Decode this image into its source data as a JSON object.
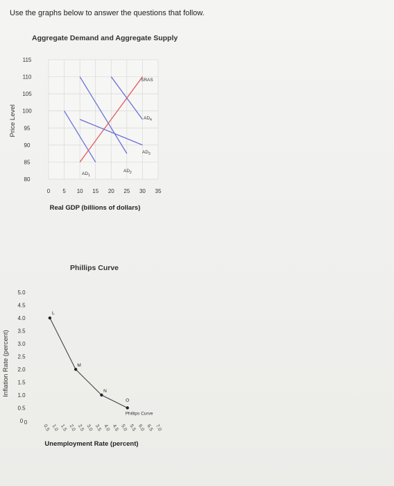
{
  "page": {
    "instructions": "Use the graphs below to answer the questions that follow."
  },
  "colors": {
    "ad_line": "#6b6fd6",
    "sras_line": "#e05a5a",
    "grid": "#d8d8d8",
    "phillips_line": "#444444"
  },
  "chart_data": [
    {
      "type": "line",
      "title": "Aggregate Demand and Aggregate Supply",
      "xlabel": "Real GDP (billions of dollars)",
      "ylabel": "Price Level",
      "xlim": [
        0,
        35
      ],
      "ylim": [
        80,
        115
      ],
      "xticks": [
        "0",
        "5",
        "10",
        "15",
        "20",
        "25",
        "30",
        "35"
      ],
      "yticks": [
        "80",
        "85",
        "90",
        "95",
        "100",
        "105",
        "110",
        "115"
      ],
      "grid": true,
      "series": [
        {
          "name": "AD1",
          "label": "AD",
          "sub": "1",
          "points": [
            [
              5,
              100
            ],
            [
              15,
              85
            ]
          ]
        },
        {
          "name": "AD2",
          "label": "AD",
          "sub": "2",
          "points": [
            [
              10,
              110
            ],
            [
              25,
              87.5
            ]
          ]
        },
        {
          "name": "SRAS",
          "label": "SRAS",
          "sub": "",
          "points": [
            [
              10,
              85
            ],
            [
              30,
              110
            ]
          ]
        },
        {
          "name": "AD4",
          "label": "AD",
          "sub": "4",
          "points": [
            [
              20,
              110
            ],
            [
              30,
              97.5
            ]
          ]
        },
        {
          "name": "AD3",
          "label": "AD",
          "sub": "3",
          "points": [
            [
              10,
              97.5
            ],
            [
              30,
              90
            ]
          ]
        }
      ]
    },
    {
      "type": "line",
      "title": "Phillips Curve",
      "xlabel": "Unemployment Rate (percent)",
      "ylabel": "Inflation Rate (percent)",
      "xlim": [
        0,
        7.0
      ],
      "ylim": [
        0,
        5.0
      ],
      "xticks": [
        "0",
        "0.5",
        "1.0",
        "1.5",
        "2.0",
        "2.5",
        "3.0",
        "3.5",
        "4.0",
        "4.5",
        "5.0",
        "5.5",
        "6.0",
        "6.5",
        "7.0"
      ],
      "yticks": [
        "0",
        "0.5",
        "1.0",
        "1.5",
        "2.0",
        "2.5",
        "3.0",
        "3.5",
        "4.0",
        "4.5",
        "5.0"
      ],
      "grid": false,
      "series": [
        {
          "name": "Phillips Curve",
          "points": [
            [
              1.0,
              4.0
            ],
            [
              2.5,
              2.0
            ],
            [
              4.0,
              1.0
            ],
            [
              5.5,
              0.5
            ]
          ],
          "point_labels": [
            "L",
            "M",
            "N",
            "O"
          ]
        }
      ]
    }
  ]
}
